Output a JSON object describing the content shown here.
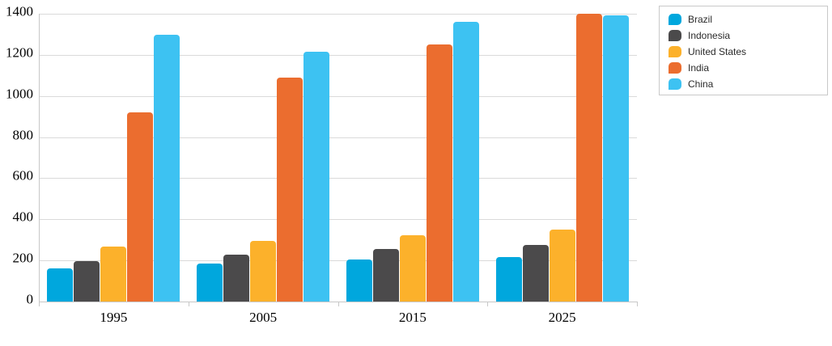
{
  "chart_data": {
    "type": "bar",
    "title": "",
    "xlabel": "",
    "ylabel": "",
    "categories": [
      "1995",
      "2005",
      "2015",
      "2025"
    ],
    "series": [
      {
        "name": "Brazil",
        "color": "#00a7dd",
        "values": [
          161,
          185,
          204,
          215
        ]
      },
      {
        "name": "Indonesia",
        "color": "#4b4a4b",
        "values": [
          196,
          228,
          255,
          276
        ]
      },
      {
        "name": "United States",
        "color": "#fcb12b",
        "values": [
          266,
          295,
          321,
          350
        ]
      },
      {
        "name": "India",
        "color": "#eb6d2f",
        "values": [
          920,
          1090,
          1251,
          1400
        ]
      },
      {
        "name": "China",
        "color": "#3dc2f2",
        "values": [
          1298,
          1216,
          1361,
          1394
        ]
      }
    ],
    "ylim": [
      0,
      1400
    ],
    "ytick_interval": 200,
    "y_tick_labels": [
      "0",
      "200",
      "400",
      "600",
      "800",
      "1000",
      "1200",
      "1400"
    ],
    "grid": "horizontal",
    "legend_position": "top-right",
    "colors": {
      "background": "#ffffff",
      "gridline": "#dadada",
      "axis_line": "#c8c8c8",
      "legend_border": "#c9c9c9",
      "axis_text": "#000000",
      "legend_text": "#2b2b2b"
    }
  }
}
